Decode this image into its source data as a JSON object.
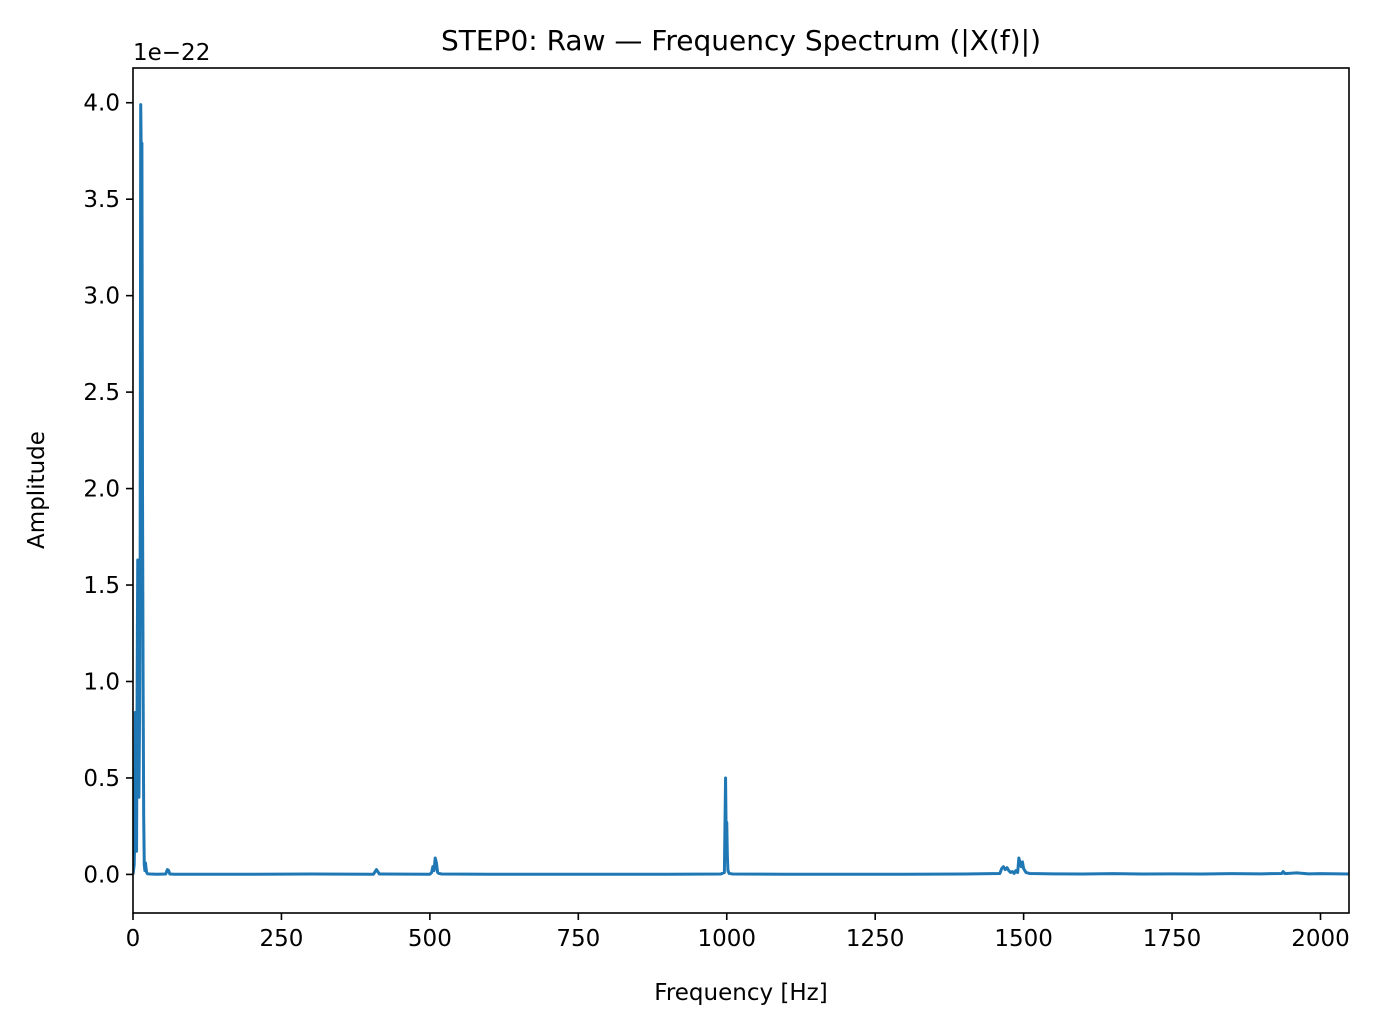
{
  "chart_data": {
    "type": "line",
    "title": "STEP0: Raw — Frequency Spectrum (|X(f)|)",
    "xlabel": "Frequency [Hz]",
    "ylabel": "Amplitude",
    "offset_label": "1e−22",
    "y_scale": 1e-22,
    "xlim": [
      0,
      2048
    ],
    "ylim": [
      -0.2,
      4.18
    ],
    "x_ticks": [
      0,
      250,
      500,
      750,
      1000,
      1250,
      1500,
      1750,
      2000
    ],
    "x_tick_labels": [
      "0",
      "250",
      "500",
      "750",
      "1000",
      "1250",
      "1500",
      "1750",
      "2000"
    ],
    "y_ticks": [
      0.0,
      0.5,
      1.0,
      1.5,
      2.0,
      2.5,
      3.0,
      3.5,
      4.0
    ],
    "y_tick_labels": [
      "0.0",
      "0.5",
      "1.0",
      "1.5",
      "2.0",
      "2.5",
      "3.0",
      "3.5",
      "4.0"
    ],
    "grid": false,
    "series": [
      {
        "color": "#1f77b4",
        "x": [
          0,
          2,
          3,
          4,
          5,
          6,
          7,
          8,
          9,
          10,
          11,
          12,
          13,
          14,
          15,
          16,
          17,
          18,
          19,
          20,
          21,
          22,
          23,
          24,
          25,
          30,
          40,
          55,
          58,
          60,
          62,
          70,
          100,
          200,
          300,
          405,
          410,
          415,
          500,
          503,
          505,
          507,
          509,
          511,
          513,
          515,
          520,
          600,
          700,
          800,
          900,
          990,
          996,
          998,
          999,
          1000,
          1001,
          1002,
          1004,
          1010,
          1100,
          1200,
          1300,
          1400,
          1460,
          1463,
          1466,
          1469,
          1472,
          1475,
          1478,
          1481,
          1484,
          1487,
          1490,
          1492,
          1494,
          1496,
          1498,
          1500,
          1502,
          1504,
          1510,
          1550,
          1600,
          1650,
          1700,
          1750,
          1800,
          1850,
          1900,
          1935,
          1937,
          1940,
          1960,
          1980,
          2000,
          2048
        ],
        "values": [
          0.0,
          0.05,
          0.2,
          0.84,
          0.35,
          0.12,
          1.0,
          1.63,
          1.2,
          0.4,
          0.8,
          1.6,
          3.99,
          3.7,
          3.79,
          2.0,
          1.0,
          0.3,
          0.05,
          0.02,
          0.06,
          0.03,
          0.01,
          0.005,
          0.003,
          0.002,
          0.001,
          0.002,
          0.025,
          0.02,
          0.002,
          0.001,
          0.001,
          0.001,
          0.002,
          0.001,
          0.025,
          0.002,
          0.001,
          0.01,
          0.04,
          0.02,
          0.085,
          0.06,
          0.01,
          0.005,
          0.002,
          0.001,
          0.001,
          0.001,
          0.001,
          0.002,
          0.01,
          0.5,
          0.2,
          0.27,
          0.1,
          0.02,
          0.005,
          0.002,
          0.001,
          0.001,
          0.001,
          0.002,
          0.005,
          0.03,
          0.04,
          0.025,
          0.035,
          0.02,
          0.01,
          0.015,
          0.005,
          0.02,
          0.01,
          0.085,
          0.06,
          0.04,
          0.065,
          0.03,
          0.02,
          0.01,
          0.005,
          0.003,
          0.002,
          0.004,
          0.002,
          0.003,
          0.002,
          0.004,
          0.003,
          0.005,
          0.015,
          0.004,
          0.008,
          0.003,
          0.004,
          0.002
        ]
      }
    ]
  }
}
